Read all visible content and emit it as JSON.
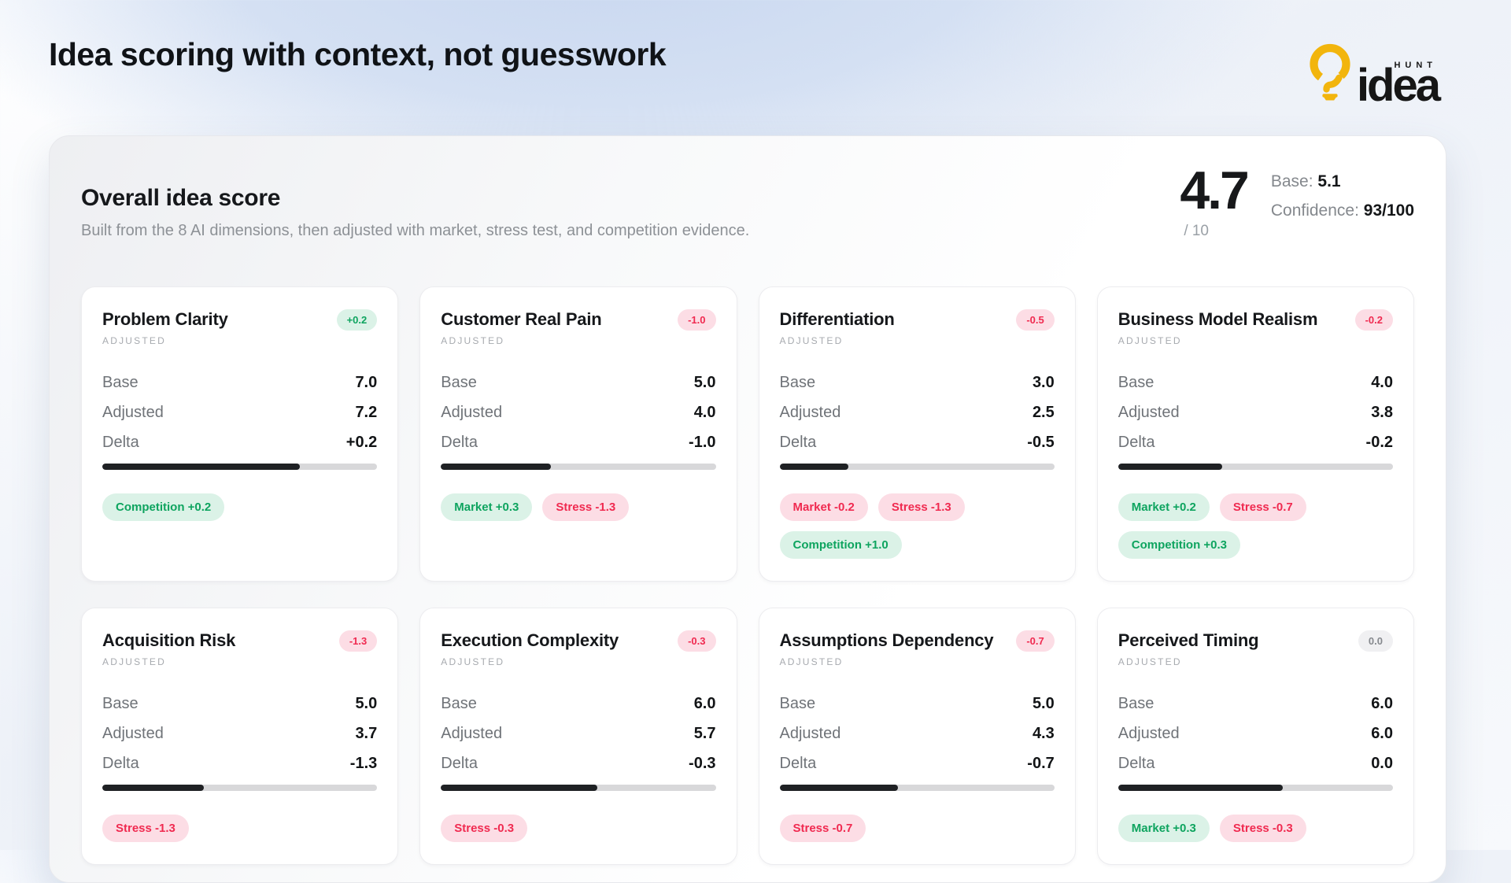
{
  "page": {
    "title": "Idea scoring with context, not guesswork"
  },
  "logo": {
    "word": "idea",
    "sub": "HUNT",
    "bulb_color": "#F2B50D"
  },
  "overall": {
    "heading": "Overall idea score",
    "subtitle": "Built from the 8 AI dimensions, then adjusted with market, stress test, and competition evidence.",
    "score": "4.7",
    "denominator": "/ 10",
    "base_label": "Base:",
    "base_value": "5.1",
    "confidence_label": "Confidence:",
    "confidence_value": "93/100"
  },
  "labels": {
    "adjusted_tag": "ADJUSTED",
    "base": "Base",
    "adjusted": "Adjusted",
    "delta": "Delta"
  },
  "colors": {
    "positive": "#0ea45f",
    "positive_bg": "#dbf2e7",
    "negative": "#f02a50",
    "negative_bg": "#fcdde5",
    "neutral": "#86898e",
    "neutral_bg": "#f0f0f2",
    "bar_fill": "#1f2124",
    "bar_track": "#d8d8da"
  },
  "cards": [
    {
      "title": "Problem Clarity",
      "delta_badge": "+0.2",
      "delta_tone": "pos",
      "base": "7.0",
      "adjusted": "7.2",
      "delta": "+0.2",
      "bar_pct": 72,
      "chips": [
        {
          "label": "Competition +0.2",
          "tone": "pos"
        }
      ]
    },
    {
      "title": "Customer Real Pain",
      "delta_badge": "-1.0",
      "delta_tone": "neg",
      "base": "5.0",
      "adjusted": "4.0",
      "delta": "-1.0",
      "bar_pct": 40,
      "chips": [
        {
          "label": "Market +0.3",
          "tone": "pos"
        },
        {
          "label": "Stress -1.3",
          "tone": "neg"
        }
      ]
    },
    {
      "title": "Differentiation",
      "delta_badge": "-0.5",
      "delta_tone": "neg",
      "base": "3.0",
      "adjusted": "2.5",
      "delta": "-0.5",
      "bar_pct": 25,
      "chips": [
        {
          "label": "Market -0.2",
          "tone": "neg"
        },
        {
          "label": "Stress -1.3",
          "tone": "neg"
        },
        {
          "label": "Competition +1.0",
          "tone": "pos"
        }
      ]
    },
    {
      "title": "Business Model Realism",
      "delta_badge": "-0.2",
      "delta_tone": "neg",
      "base": "4.0",
      "adjusted": "3.8",
      "delta": "-0.2",
      "bar_pct": 38,
      "chips": [
        {
          "label": "Market +0.2",
          "tone": "pos"
        },
        {
          "label": "Stress -0.7",
          "tone": "neg"
        },
        {
          "label": "Competition +0.3",
          "tone": "pos"
        }
      ]
    },
    {
      "title": "Acquisition Risk",
      "delta_badge": "-1.3",
      "delta_tone": "neg",
      "base": "5.0",
      "adjusted": "3.7",
      "delta": "-1.3",
      "bar_pct": 37,
      "chips": [
        {
          "label": "Stress -1.3",
          "tone": "neg"
        }
      ]
    },
    {
      "title": "Execution Complexity",
      "delta_badge": "-0.3",
      "delta_tone": "neg",
      "base": "6.0",
      "adjusted": "5.7",
      "delta": "-0.3",
      "bar_pct": 57,
      "chips": [
        {
          "label": "Stress -0.3",
          "tone": "neg"
        }
      ]
    },
    {
      "title": "Assumptions Dependency",
      "delta_badge": "-0.7",
      "delta_tone": "neg",
      "base": "5.0",
      "adjusted": "4.3",
      "delta": "-0.7",
      "bar_pct": 43,
      "chips": [
        {
          "label": "Stress -0.7",
          "tone": "neg"
        }
      ]
    },
    {
      "title": "Perceived Timing",
      "delta_badge": "0.0",
      "delta_tone": "neu",
      "base": "6.0",
      "adjusted": "6.0",
      "delta": "0.0",
      "bar_pct": 60,
      "chips": [
        {
          "label": "Market +0.3",
          "tone": "pos"
        },
        {
          "label": "Stress -0.3",
          "tone": "neg"
        }
      ]
    }
  ]
}
